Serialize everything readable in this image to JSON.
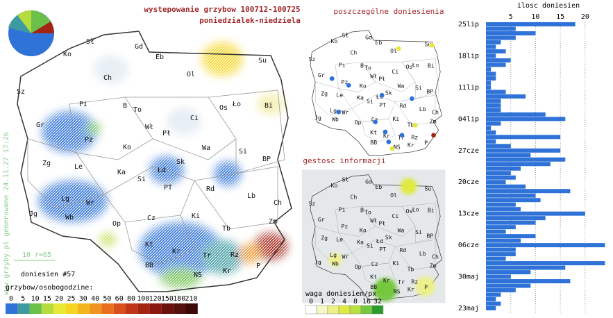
{
  "header": {
    "title": "wystepowanie grzybow 100712-100725",
    "subtitle": "poniedzialek-niedziela"
  },
  "map_titles": {
    "points": "poszczególne doniesienia",
    "density": "gestosc informacji"
  },
  "regions": [
    "Sł",
    "Gd",
    "Eb",
    "Ko",
    "Ch",
    "Ol",
    "Su",
    "Sz",
    "Pi",
    "B",
    "To",
    "Gr",
    "Wł",
    "Pł",
    "Os",
    "Ło",
    "Bi",
    "Ci",
    "Pz",
    "Ko",
    "Wa",
    "Si",
    "Zg",
    "Le",
    "Ka",
    "Łd",
    "Sk",
    "BP",
    "Si",
    "PT",
    "Rd",
    "Lb",
    "Ch",
    "Lg",
    "Wr",
    "Jg",
    "Wb",
    "Op",
    "Cz",
    "Ki",
    "Tb",
    "Zm",
    "Kt",
    "Kr",
    "Tr",
    "Rz",
    "P",
    "BB",
    "NS",
    "Kr"
  ],
  "side_notes": {
    "count": "doniesien #57",
    "scale": "10",
    "radius": "r=65",
    "watermark": "www.grzyby.pl generowane 24.11.27 17:26"
  },
  "legend": {
    "title": "grzybow/osobogodzine:",
    "labels": [
      "0",
      "5",
      "10",
      "15",
      "20",
      "25",
      "30",
      "40",
      "50",
      "60",
      "80",
      "100",
      "120",
      "150",
      "180",
      "210"
    ],
    "colors": [
      "#2f72d8",
      "#3e9aa0",
      "#6cbf48",
      "#b4dc3c",
      "#e8e838",
      "#f5d422",
      "#f3b41e",
      "#f09420",
      "#e8701e",
      "#d8501c",
      "#c0341a",
      "#a42414",
      "#881810",
      "#6c100c",
      "#54100c",
      "#3c0808"
    ]
  },
  "legend2": {
    "title": "waga doniesien/px",
    "labels": [
      "0",
      "1",
      "2",
      "4",
      "8",
      "16",
      "32"
    ],
    "colors": [
      "#ffffff",
      "#f6f8c8",
      "#eef08a",
      "#e0ea40",
      "#b8e040",
      "#74c83c",
      "#2a9a2a"
    ]
  },
  "chart_data": {
    "type": "bar",
    "orientation": "horizontal",
    "title": "ilosc doniesien",
    "color": "#2f72d8",
    "categories": [
      "25lip",
      null,
      null,
      null,
      null,
      null,
      null,
      "18lip",
      null,
      null,
      null,
      null,
      null,
      null,
      "11lip",
      null,
      null,
      null,
      null,
      null,
      null,
      "04lip",
      null,
      null,
      null,
      null,
      null,
      null,
      "27cze",
      null,
      null,
      null,
      null,
      null,
      null,
      "20cze",
      null,
      null,
      null,
      null,
      null,
      null,
      "13cze",
      null,
      null,
      null,
      null,
      null,
      null,
      "06cze",
      null,
      null,
      null,
      null,
      null,
      null,
      "30maj",
      null,
      null,
      null,
      null,
      null,
      null,
      "23maj"
    ],
    "values": [
      18,
      6,
      10,
      6,
      3,
      2,
      4,
      2,
      5,
      4,
      1,
      2,
      2,
      1,
      1,
      4,
      8,
      3,
      3,
      3,
      12,
      16,
      3,
      1,
      2,
      15,
      2,
      5,
      15,
      9,
      16,
      13,
      7,
      5,
      6,
      4,
      8,
      17,
      10,
      11,
      6,
      7,
      20,
      12,
      10,
      6,
      4,
      10,
      7,
      24,
      6,
      6,
      4,
      24,
      16,
      9,
      5,
      17,
      9,
      6,
      3,
      2,
      3,
      2
    ],
    "xlim": [
      0,
      24.5
    ],
    "xticks": [
      5,
      10,
      15,
      20
    ],
    "grid": true
  }
}
